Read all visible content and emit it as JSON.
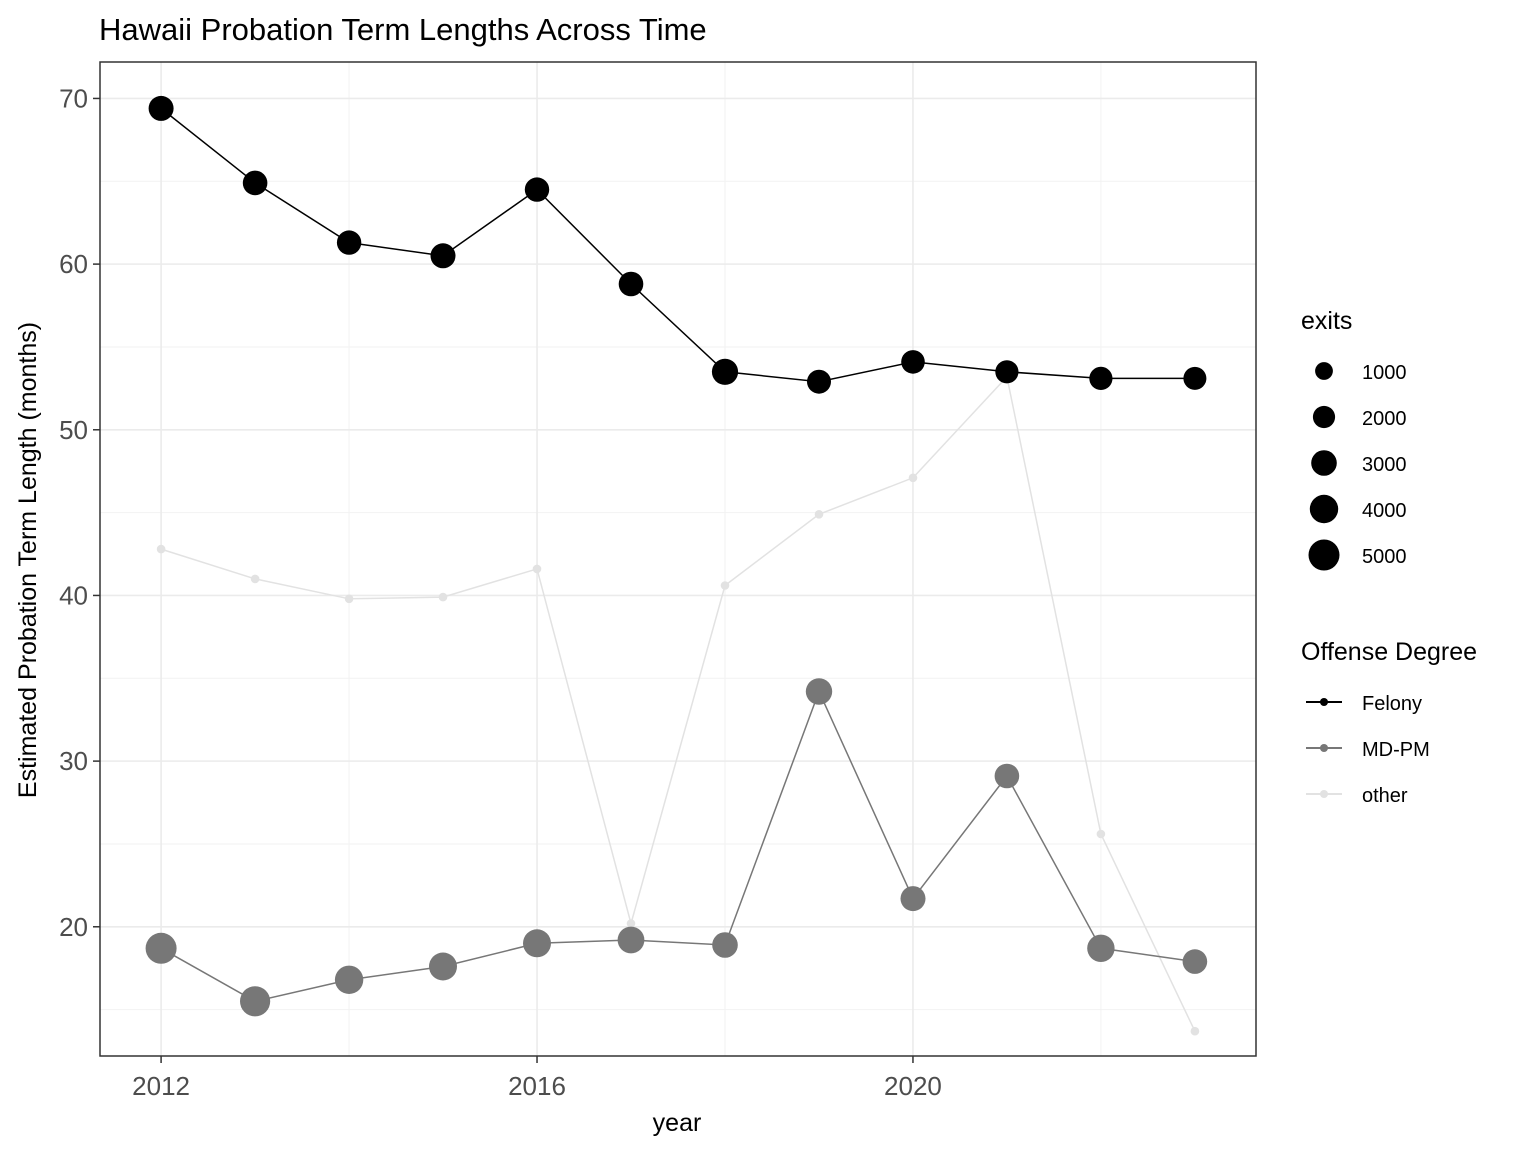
{
  "chart_data": {
    "type": "line",
    "title": "Hawaii Probation Term Lengths Across Time",
    "xlabel": "year",
    "ylabel": "Estimated Probation Term Length (months)",
    "xlim": [
      2011.35,
      2023.65
    ],
    "ylim": [
      12.2,
      72.2
    ],
    "x_ticks": [
      2012,
      2016,
      2020
    ],
    "y_ticks": [
      20,
      30,
      40,
      50,
      60,
      70
    ],
    "grid": true,
    "x": [
      2012,
      2013,
      2014,
      2015,
      2016,
      2017,
      2018,
      2019,
      2020,
      2021,
      2022,
      2023
    ],
    "series": [
      {
        "name": "Felony",
        "color": "#000000",
        "values": [
          69.4,
          64.9,
          61.3,
          60.5,
          64.5,
          58.8,
          53.5,
          52.9,
          54.1,
          53.5,
          53.1,
          53.1
        ],
        "exits": [
          2800,
          2700,
          2600,
          2800,
          2600,
          2700,
          3200,
          2500,
          2400,
          2300,
          2300,
          2200
        ]
      },
      {
        "name": "MD-PM",
        "color": "#777777",
        "values": [
          18.7,
          15.5,
          16.8,
          17.6,
          19.0,
          19.2,
          18.9,
          34.2,
          21.7,
          29.1,
          18.7,
          17.9
        ],
        "exits": [
          5000,
          4700,
          4000,
          3800,
          3800,
          3400,
          3000,
          3300,
          2800,
          2700,
          3600,
          2700
        ]
      },
      {
        "name": "other",
        "color": "#e2e2e2",
        "values": [
          42.8,
          41.0,
          39.8,
          39.9,
          41.6,
          20.2,
          40.6,
          44.9,
          47.1,
          53.2,
          25.6,
          13.7
        ],
        "exits": [
          20,
          20,
          20,
          20,
          20,
          20,
          20,
          20,
          20,
          20,
          20,
          20
        ]
      }
    ],
    "legend": {
      "placement": "right",
      "size_title": "exits",
      "size_entries": [
        {
          "label": "1000",
          "value": 1000
        },
        {
          "label": "2000",
          "value": 2000
        },
        {
          "label": "3000",
          "value": 3000
        },
        {
          "label": "4000",
          "value": 4000
        },
        {
          "label": "5000",
          "value": 5000
        }
      ],
      "color_title": "Offense Degree",
      "color_entries": [
        {
          "label": "Felony",
          "color": "#000000"
        },
        {
          "label": "MD-PM",
          "color": "#777777"
        },
        {
          "label": "other",
          "color": "#e2e2e2"
        }
      ]
    }
  }
}
